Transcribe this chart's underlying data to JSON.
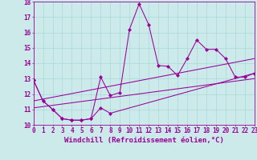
{
  "xlabel": "Windchill (Refroidissement éolien,°C)",
  "background_color": "#cceaea",
  "line_color": "#990099",
  "x_min": 0,
  "x_max": 23,
  "y_min": 10,
  "y_max": 18,
  "line1_x": [
    0,
    1,
    2,
    3,
    4,
    5,
    6,
    7,
    8,
    9,
    10,
    11,
    12,
    13,
    14,
    15,
    16,
    17,
    18,
    19,
    20,
    21,
    22,
    23
  ],
  "line1_y": [
    12.9,
    11.55,
    11.0,
    10.4,
    10.3,
    10.3,
    10.4,
    13.1,
    11.9,
    12.1,
    16.2,
    17.85,
    16.5,
    13.85,
    13.8,
    13.2,
    14.3,
    15.5,
    14.9,
    14.9,
    14.3,
    13.1,
    13.1,
    13.35
  ],
  "line2_x": [
    0,
    1,
    2,
    3,
    4,
    5,
    6,
    7,
    8,
    23
  ],
  "line2_y": [
    12.9,
    11.55,
    11.0,
    10.4,
    10.3,
    10.3,
    10.4,
    11.1,
    10.75,
    13.35
  ],
  "line3_x": [
    0,
    23
  ],
  "line3_y": [
    11.1,
    13.0
  ],
  "line4_x": [
    0,
    23
  ],
  "line4_y": [
    11.55,
    14.3
  ],
  "marker": "D",
  "marker_size": 2.2,
  "grid_color": "#aad8d8",
  "tick_fontsize": 5.5,
  "label_fontsize": 6.5
}
